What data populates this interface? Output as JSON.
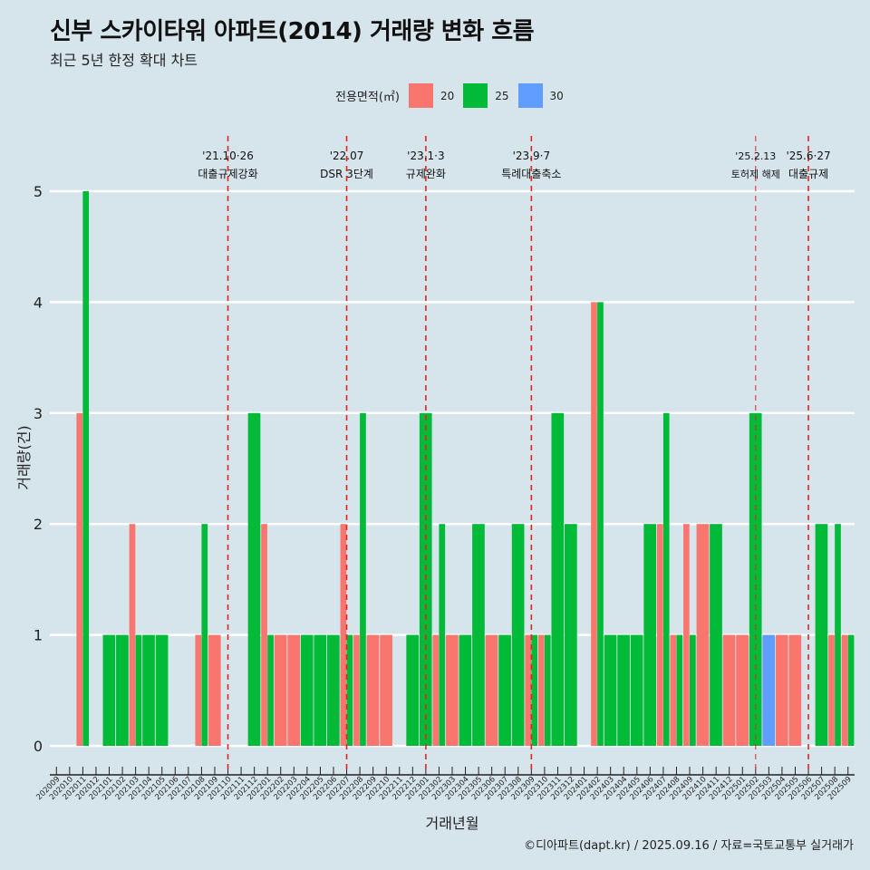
{
  "title": "신부 스카이타워 아파트(2014) 거래량 변화 흐름",
  "subtitle": "최근 5년 한정 확대 차트",
  "caption": "©디아파트(dapt.kr) / 2025.09.16 / 자료=국토교통부 실거래가",
  "legend": {
    "title": "전용면적(㎡)",
    "items": [
      {
        "label": "20",
        "color": "#f8766d"
      },
      {
        "label": "25",
        "color": "#00ba38"
      },
      {
        "label": "30",
        "color": "#619cff"
      }
    ]
  },
  "chart_data": {
    "type": "bar",
    "xlabel": "거래년월",
    "ylabel": "거래량(건)",
    "ylim": [
      0,
      5
    ],
    "yticks": [
      0,
      1,
      2,
      3,
      4,
      5
    ],
    "grid": true,
    "legend_position": "top",
    "categories": [
      "202009",
      "202010",
      "202011",
      "202012",
      "202101",
      "202102",
      "202103",
      "202104",
      "202105",
      "202106",
      "202107",
      "202108",
      "202109",
      "202110",
      "202111",
      "202112",
      "202201",
      "202202",
      "202203",
      "202204",
      "202205",
      "202206",
      "202207",
      "202208",
      "202209",
      "202210",
      "202211",
      "202212",
      "202301",
      "202302",
      "202303",
      "202304",
      "202305",
      "202306",
      "202307",
      "202308",
      "202309",
      "202310",
      "202311",
      "202312",
      "202401",
      "202402",
      "202403",
      "202404",
      "202405",
      "202406",
      "202407",
      "202408",
      "202409",
      "202410",
      "202411",
      "202412",
      "202501",
      "202502",
      "202503",
      "202504",
      "202505",
      "202506",
      "202507",
      "202508",
      "202509"
    ],
    "series": [
      {
        "name": "20",
        "color": "#f8766d",
        "values": [
          0,
          0,
          3,
          0,
          0,
          0,
          2,
          0,
          0,
          0,
          0,
          1,
          1,
          0,
          0,
          0,
          2,
          1,
          1,
          0,
          0,
          0,
          2,
          1,
          1,
          1,
          0,
          0,
          0,
          1,
          1,
          0,
          0,
          1,
          0,
          0,
          1,
          1,
          0,
          0,
          0,
          4,
          0,
          0,
          0,
          0,
          2,
          1,
          2,
          2,
          0,
          1,
          1,
          0,
          0,
          1,
          1,
          0,
          0,
          1,
          1
        ]
      },
      {
        "name": "25",
        "color": "#00ba38",
        "values": [
          0,
          0,
          5,
          0,
          1,
          1,
          1,
          1,
          1,
          0,
          0,
          2,
          0,
          0,
          0,
          3,
          1,
          0,
          0,
          1,
          1,
          1,
          1,
          3,
          0,
          0,
          0,
          1,
          3,
          2,
          0,
          1,
          2,
          0,
          1,
          2,
          1,
          1,
          3,
          2,
          0,
          4,
          1,
          1,
          1,
          2,
          3,
          1,
          1,
          0,
          2,
          0,
          0,
          3,
          0,
          0,
          0,
          0,
          2,
          2,
          1
        ]
      },
      {
        "name": "30",
        "color": "#619cff",
        "values": [
          0,
          0,
          0,
          0,
          0,
          0,
          0,
          0,
          0,
          0,
          0,
          0,
          0,
          0,
          0,
          0,
          0,
          0,
          0,
          0,
          0,
          0,
          0,
          0,
          0,
          0,
          0,
          0,
          0,
          0,
          0,
          0,
          0,
          0,
          0,
          0,
          0,
          0,
          0,
          0,
          0,
          0,
          0,
          0,
          0,
          0,
          0,
          0,
          0,
          0,
          0,
          0,
          0,
          0,
          1,
          0,
          0,
          0,
          0,
          0,
          0
        ]
      }
    ],
    "annotations": [
      {
        "at": "202110",
        "line1": "'21.10·26",
        "line2": "대출규제강화"
      },
      {
        "at": "202207",
        "line1": "'22.07",
        "line2": "DSR 3단계"
      },
      {
        "at": "202301",
        "line1": "'23.1·3",
        "line2": "규제완화"
      },
      {
        "at": "202309",
        "line1": "'23.9·7",
        "line2": "특례대출축소"
      },
      {
        "at": "202502",
        "line1": "'25.2.13",
        "line2": "토허제 해제"
      },
      {
        "at": "202506",
        "line1": "'25.6·27",
        "line2": "대출규제"
      }
    ]
  }
}
